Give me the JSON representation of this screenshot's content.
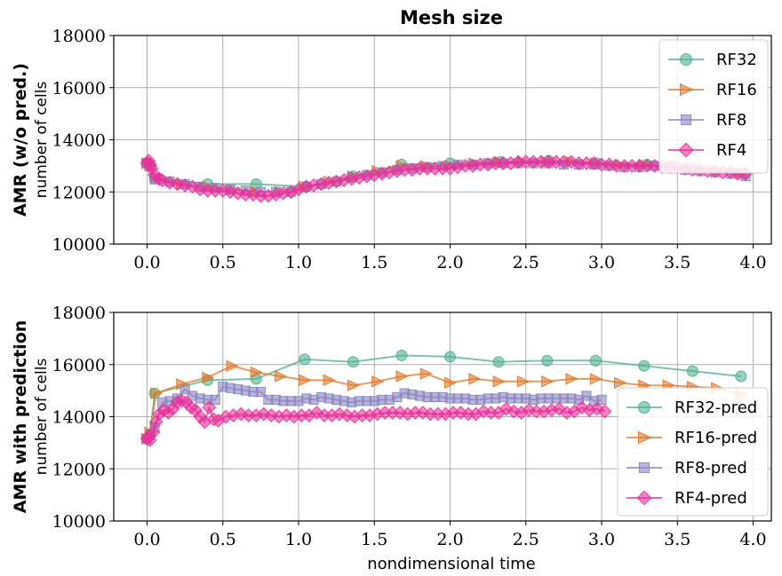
{
  "title": "Mesh size",
  "xlabel": "nondimensional time",
  "colors": {
    "RF32": "#52b08f",
    "RF16": "#e0782a",
    "RF8": "#8a86c2",
    "RF4": "#e8319a"
  },
  "chart_data": [
    {
      "type": "line",
      "title": "Mesh size",
      "ylabel_main": "AMR (w/o pred.)",
      "ylabel_sub": "number of cells",
      "xlim": [
        -0.22,
        4.12
      ],
      "ylim": [
        10000,
        18000
      ],
      "xticks": [
        0.0,
        0.5,
        1.0,
        1.5,
        2.0,
        2.5,
        3.0,
        3.5,
        4.0
      ],
      "xtick_labels": [
        "0.0",
        "0.5",
        "1.0",
        "1.5",
        "2.0",
        "2.5",
        "3.0",
        "3.5",
        "4.0"
      ],
      "yticks": [
        10000,
        12000,
        14000,
        16000,
        18000
      ],
      "ytick_labels": [
        "10000",
        "12000",
        "14000",
        "16000",
        "18000"
      ],
      "grid": true,
      "legend_position": "upper-right",
      "series": [
        {
          "name": "RF32",
          "color": "#52b08f",
          "marker": "circle",
          "x": [
            0.0,
            0.02,
            0.05,
            0.4,
            0.72,
            1.05,
            1.36,
            1.68,
            2.0,
            2.33,
            2.65,
            2.97,
            3.3,
            3.62,
            3.94
          ],
          "y": [
            13100,
            13000,
            12500,
            12300,
            12300,
            12200,
            12600,
            13050,
            13100,
            13150,
            13200,
            13100,
            13050,
            12900,
            12700
          ]
        },
        {
          "name": "RF16",
          "color": "#e0782a",
          "marker": "triangle-right",
          "x": [
            0.0,
            0.02,
            0.06,
            0.23,
            0.4,
            0.56,
            0.72,
            0.88,
            1.04,
            1.2,
            1.36,
            1.52,
            1.68,
            1.84,
            2.0,
            2.16,
            2.32,
            2.48,
            2.64,
            2.8,
            2.96,
            3.12,
            3.28,
            3.44,
            3.6,
            3.76,
            3.92
          ],
          "y": [
            13100,
            13000,
            12500,
            12300,
            12200,
            12100,
            12000,
            12000,
            12200,
            12400,
            12600,
            12800,
            13000,
            13000,
            13000,
            13100,
            13150,
            13150,
            13150,
            13150,
            13100,
            13050,
            13050,
            12950,
            12900,
            12800,
            12700
          ]
        },
        {
          "name": "RF8",
          "color": "#8a86c2",
          "marker": "square",
          "x": [
            0.0,
            0.02,
            0.05,
            0.15,
            0.25,
            0.35,
            0.45,
            0.55,
            0.65,
            0.75,
            0.85,
            0.95,
            1.05,
            1.15,
            1.25,
            1.35,
            1.45,
            1.55,
            1.65,
            1.75,
            1.85,
            1.95,
            2.05,
            2.15,
            2.25,
            2.35,
            2.45,
            2.55,
            2.65,
            2.75,
            2.85,
            2.95,
            3.05,
            3.15,
            3.25,
            3.35,
            3.45,
            3.55,
            3.65,
            3.75,
            3.85,
            3.95
          ],
          "y": [
            13100,
            13000,
            12500,
            12400,
            12300,
            12200,
            12150,
            12100,
            12050,
            12000,
            12000,
            12000,
            12200,
            12300,
            12400,
            12550,
            12650,
            12750,
            12850,
            12900,
            12950,
            13000,
            13050,
            13050,
            13100,
            13100,
            13100,
            13100,
            13100,
            13050,
            13050,
            13050,
            13000,
            12950,
            12950,
            13000,
            13000,
            12850,
            12800,
            12750,
            12700,
            12600
          ]
        },
        {
          "name": "RF4",
          "color": "#e8319a",
          "marker": "diamond",
          "x": [
            0.0,
            0.01,
            0.02,
            0.03,
            0.05,
            0.08,
            0.1,
            0.15,
            0.2,
            0.25,
            0.3,
            0.35,
            0.4,
            0.45,
            0.5,
            0.55,
            0.6,
            0.65,
            0.7,
            0.75,
            0.8,
            0.85,
            0.9,
            0.95,
            1.0,
            1.05,
            1.1,
            1.15,
            1.2,
            1.25,
            1.3,
            1.35,
            1.4,
            1.45,
            1.5,
            1.55,
            1.6,
            1.65,
            1.7,
            1.75,
            1.8,
            1.85,
            1.9,
            1.95,
            2.0,
            2.05,
            2.1,
            2.15,
            2.2,
            2.25,
            2.3,
            2.35,
            2.4,
            2.45,
            2.5,
            2.55,
            2.6,
            2.65,
            2.7,
            2.75,
            2.8,
            2.85,
            2.9,
            2.95,
            3.0,
            3.05,
            3.1,
            3.15,
            3.2,
            3.25,
            3.3,
            3.35,
            3.4,
            3.45,
            3.5,
            3.55,
            3.6,
            3.65,
            3.7,
            3.75,
            3.8,
            3.85,
            3.9,
            3.95
          ],
          "y": [
            13100,
            13200,
            13050,
            12900,
            12650,
            12500,
            12450,
            12350,
            12300,
            12250,
            12200,
            12100,
            12050,
            12050,
            12050,
            12000,
            11950,
            11900,
            11900,
            11850,
            11850,
            11900,
            11950,
            12000,
            12100,
            12200,
            12250,
            12300,
            12350,
            12400,
            12450,
            12500,
            12550,
            12600,
            12650,
            12700,
            12750,
            12800,
            12850,
            12850,
            12900,
            12900,
            12900,
            12900,
            12900,
            12950,
            13000,
            13000,
            13050,
            13050,
            13100,
            13100,
            13100,
            13150,
            13150,
            13150,
            13150,
            13150,
            13150,
            13150,
            13150,
            13100,
            13100,
            13100,
            13050,
            13050,
            13000,
            13000,
            13000,
            13000,
            13000,
            13000,
            12950,
            12950,
            12950,
            12900,
            12850,
            12850,
            12800,
            12800,
            12750,
            12750,
            12700,
            12700
          ]
        }
      ]
    },
    {
      "type": "line",
      "ylabel_main": "AMR with prediction",
      "ylabel_sub": "number of cells",
      "xlabel": "nondimensional time",
      "xlim": [
        -0.22,
        4.12
      ],
      "ylim": [
        10000,
        18000
      ],
      "xticks": [
        0.0,
        0.5,
        1.0,
        1.5,
        2.0,
        2.5,
        3.0,
        3.5,
        4.0
      ],
      "xtick_labels": [
        "0.0",
        "0.5",
        "1.0",
        "1.5",
        "2.0",
        "2.5",
        "3.0",
        "3.5",
        "4.0"
      ],
      "yticks": [
        10000,
        12000,
        14000,
        16000,
        18000
      ],
      "ytick_labels": [
        "10000",
        "12000",
        "14000",
        "16000",
        "18000"
      ],
      "grid": true,
      "legend_position": "lower-right",
      "series": [
        {
          "name": "RF32-pred",
          "color": "#52b08f",
          "marker": "circle",
          "x": [
            0.0,
            0.02,
            0.05,
            0.4,
            0.72,
            1.04,
            1.36,
            1.68,
            2.0,
            2.32,
            2.64,
            2.96,
            3.28,
            3.6,
            3.92
          ],
          "y": [
            13150,
            13300,
            14900,
            15400,
            15450,
            16200,
            16100,
            16350,
            16300,
            16100,
            16150,
            16150,
            15950,
            15750,
            15550
          ]
        },
        {
          "name": "RF16-pred",
          "color": "#e0782a",
          "marker": "triangle-right",
          "x": [
            0.0,
            0.02,
            0.06,
            0.23,
            0.4,
            0.56,
            0.72,
            0.88,
            1.04,
            1.2,
            1.36,
            1.52,
            1.68,
            1.84,
            2.0,
            2.16,
            2.32,
            2.48,
            2.64,
            2.8,
            2.96,
            3.12,
            3.28,
            3.44,
            3.6,
            3.76,
            3.92
          ],
          "y": [
            13150,
            13400,
            14900,
            15250,
            15500,
            15950,
            15700,
            15550,
            15400,
            15400,
            15200,
            15350,
            15550,
            15650,
            15300,
            15450,
            15350,
            15350,
            15350,
            15450,
            15450,
            15300,
            15200,
            15200,
            15150,
            15100,
            14850
          ]
        },
        {
          "name": "RF8-pred",
          "color": "#8a86c2",
          "marker": "square",
          "x": [
            0.0,
            0.02,
            0.05,
            0.1,
            0.15,
            0.2,
            0.25,
            0.3,
            0.35,
            0.4,
            0.45,
            0.5,
            0.55,
            0.6,
            0.65,
            0.7,
            0.75,
            0.8,
            0.85,
            0.9,
            0.95,
            1.0,
            1.05,
            1.1,
            1.15,
            1.2,
            1.25,
            1.3,
            1.35,
            1.4,
            1.45,
            1.5,
            1.55,
            1.6,
            1.65,
            1.7,
            1.75,
            1.8,
            1.85,
            1.9,
            1.95,
            2.0,
            2.05,
            2.1,
            2.15,
            2.2,
            2.25,
            2.3,
            2.35,
            2.4,
            2.45,
            2.5,
            2.55,
            2.6,
            2.65,
            2.7,
            2.75,
            2.8,
            2.85,
            2.9,
            2.95,
            3.0
          ],
          "y": [
            13150,
            13300,
            13600,
            14550,
            14600,
            14700,
            15050,
            14800,
            14700,
            14650,
            14650,
            15150,
            15100,
            15050,
            15000,
            14950,
            14950,
            14650,
            14650,
            14600,
            14600,
            14600,
            14700,
            14650,
            14750,
            14700,
            14650,
            14600,
            14550,
            14600,
            14600,
            14600,
            14650,
            14650,
            14750,
            14900,
            14850,
            14800,
            14750,
            14750,
            14750,
            14700,
            14700,
            14700,
            14650,
            14650,
            14700,
            14700,
            14750,
            14700,
            14700,
            14700,
            14650,
            14700,
            14700,
            14700,
            14700,
            14700,
            14650,
            14800,
            14600,
            14650
          ]
        },
        {
          "name": "RF4-pred",
          "color": "#e8319a",
          "marker": "diamond",
          "x": [
            0.0,
            0.01,
            0.02,
            0.04,
            0.06,
            0.08,
            0.11,
            0.14,
            0.17,
            0.2,
            0.23,
            0.26,
            0.29,
            0.32,
            0.35,
            0.38,
            0.41,
            0.44,
            0.47,
            0.52,
            0.57,
            0.62,
            0.67,
            0.72,
            0.77,
            0.82,
            0.87,
            0.92,
            0.97,
            1.02,
            1.07,
            1.12,
            1.17,
            1.22,
            1.27,
            1.32,
            1.37,
            1.42,
            1.47,
            1.52,
            1.57,
            1.62,
            1.67,
            1.72,
            1.77,
            1.82,
            1.87,
            1.92,
            1.97,
            2.02,
            2.07,
            2.12,
            2.17,
            2.22,
            2.27,
            2.32,
            2.37,
            2.42,
            2.47,
            2.52,
            2.57,
            2.62,
            2.67,
            2.72,
            2.77,
            2.82,
            2.87,
            2.92,
            2.97,
            3.02
          ],
          "y": [
            13150,
            13250,
            13100,
            13400,
            13800,
            14100,
            14250,
            14150,
            14300,
            14550,
            14600,
            14550,
            14350,
            14250,
            14000,
            13800,
            14350,
            13900,
            13850,
            14000,
            14050,
            14100,
            14050,
            14050,
            14100,
            14050,
            14000,
            14050,
            14000,
            14050,
            14050,
            14150,
            14050,
            14050,
            14100,
            14050,
            14000,
            14050,
            14050,
            14100,
            14150,
            14150,
            14150,
            14100,
            14150,
            14150,
            14100,
            14100,
            14100,
            14150,
            14150,
            14100,
            14100,
            14200,
            14150,
            14150,
            14300,
            14200,
            14150,
            14250,
            14200,
            14200,
            14250,
            14300,
            14150,
            14200,
            14350,
            14250,
            14300,
            14200
          ]
        }
      ]
    }
  ]
}
